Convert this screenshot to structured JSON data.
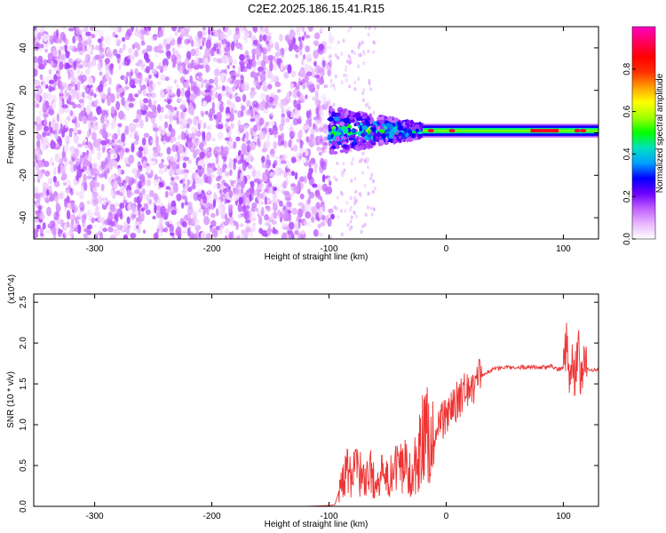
{
  "figure": {
    "title": "C2E2.2025.186.15.41.R15"
  },
  "chart_data": [
    {
      "type": "heatmap",
      "title": "C2E2.2025.186.15.41.R15",
      "xlabel": "Height of straight line (km)",
      "ylabel": "Frequency (Hz)",
      "xlim": [
        -352,
        130
      ],
      "ylim": [
        -50,
        50
      ],
      "x_ticks": [
        -300,
        -200,
        -100,
        0,
        100
      ],
      "y_ticks": [
        -40,
        -20,
        0,
        20,
        40
      ],
      "grid": false,
      "colorbar": {
        "label": "Normalized spectral amplitude",
        "range": [
          0,
          1
        ],
        "ticks": [
          "0.0",
          "0.2",
          "0.4",
          "0.6",
          "0.8"
        ],
        "colors": [
          "#ffffff",
          "#e8b8ff",
          "#c060ff",
          "#7000ff",
          "#0000ff",
          "#00a0ff",
          "#00e0c0",
          "#00ff00",
          "#a0ff00",
          "#ffff00",
          "#ffa000",
          "#ff3000",
          "#ff0000",
          "#ff0060",
          "#ff00c0"
        ]
      },
      "regions": [
        {
          "name": "noise",
          "x_range": [
            -352,
            -100
          ],
          "freq_range": [
            -50,
            50
          ],
          "max_amplitude": 0.15
        },
        {
          "name": "transition",
          "x_range": [
            -100,
            -20
          ],
          "freq_range": [
            -8,
            8
          ],
          "max_amplitude": 0.6
        },
        {
          "name": "tone",
          "x_range": [
            -20,
            130
          ],
          "center_freq": 1,
          "amplitude": 0.45,
          "peaks": [
            -13,
            5,
            75,
            93,
            112,
            117
          ]
        }
      ]
    },
    {
      "type": "line",
      "title": "",
      "xlabel": "Height of straight line (km)",
      "ylabel": "SNR (10 * v/v)",
      "y_multiplier": "(x10^4)",
      "xlim": [
        -352,
        130
      ],
      "ylim": [
        0,
        2.6
      ],
      "x_ticks": [
        -300,
        -200,
        -100,
        0,
        100
      ],
      "y_ticks": [
        0.0,
        0.5,
        1.0,
        1.5,
        2.0,
        2.5
      ],
      "y_tick_labels": [
        "0.0",
        "0.5",
        "1.0",
        "1.5",
        "2.0",
        "2.5"
      ],
      "grid": false,
      "series": [
        {
          "color": "#ee3333",
          "x": [
            -352,
            -120,
            -100,
            -95,
            -90,
            -85,
            -80,
            -75,
            -70,
            -65,
            -60,
            -55,
            -50,
            -45,
            -40,
            -35,
            -30,
            -25,
            -20,
            -15,
            -10,
            -5,
            0,
            10,
            20,
            30,
            40,
            50,
            60,
            70,
            80,
            90,
            95,
            100,
            103,
            105,
            108,
            110,
            113,
            115,
            118,
            120,
            125,
            130
          ],
          "y": [
            0.0,
            0.0,
            0.01,
            0.02,
            0.25,
            0.45,
            0.4,
            0.5,
            0.35,
            0.45,
            0.3,
            0.4,
            0.35,
            0.45,
            0.5,
            0.55,
            0.45,
            0.6,
            0.9,
            1.0,
            0.85,
            1.05,
            1.1,
            1.3,
            1.45,
            1.6,
            1.68,
            1.7,
            1.7,
            1.71,
            1.7,
            1.71,
            1.68,
            1.7,
            2.1,
            1.5,
            1.8,
            1.6,
            1.9,
            1.55,
            1.75,
            1.68,
            1.67,
            1.67
          ]
        }
      ]
    }
  ]
}
